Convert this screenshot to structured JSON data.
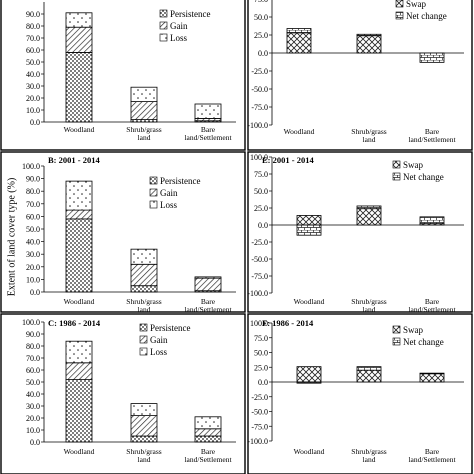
{
  "figure": {
    "ylabel": "Extent of land cover type (%)",
    "colors": {
      "frame": "#000000",
      "bar_fill": "#ffffff",
      "pattern_ink": "#222222"
    },
    "patterns": {
      "Persistence": "dots",
      "Gain": "hatch",
      "Loss": "sparse-dots",
      "Swap": "crosshatch",
      "Net change": "bricks"
    }
  },
  "chart_data": [
    {
      "id": "A",
      "type": "bar",
      "stacked": true,
      "title": "",
      "categories": [
        "Woodland",
        "Shrub/grass land",
        "Bare land/Settlement"
      ],
      "series": [
        {
          "name": "Persistence",
          "values": [
            58,
            2,
            1
          ]
        },
        {
          "name": "Gain",
          "values": [
            21,
            15,
            2
          ]
        },
        {
          "name": "Loss",
          "values": [
            12,
            12,
            12
          ]
        }
      ],
      "ylim": [
        0,
        100
      ],
      "ytick_labels": [
        "0.0",
        "10.0",
        "20.0",
        "30.0",
        "40.0",
        "50.0",
        "60.0",
        "70.0",
        "80.0",
        "90.0"
      ],
      "yticks_visible": 10,
      "legend": "top-right"
    },
    {
      "id": "B",
      "type": "bar",
      "stacked": true,
      "title": "B: 2001 - 2014",
      "categories": [
        "Woodland",
        "Shrub/grass land",
        "Bare land/Settlement"
      ],
      "series": [
        {
          "name": "Persistence",
          "values": [
            58,
            5,
            1
          ]
        },
        {
          "name": "Gain",
          "values": [
            7,
            17,
            10
          ]
        },
        {
          "name": "Loss",
          "values": [
            23,
            12,
            1
          ]
        }
      ],
      "ylim": [
        0,
        100
      ],
      "ytick_labels": [
        "0.0",
        "10.0",
        "20.0",
        "30.0",
        "40.0",
        "50.0",
        "60.0",
        "70.0",
        "80.0",
        "90.0",
        "100.0"
      ],
      "legend": "top-right"
    },
    {
      "id": "C",
      "type": "bar",
      "stacked": true,
      "title": "C: 1986 - 2014",
      "categories": [
        "Woodland",
        "Shrub/grass land",
        "Bare land/Settlement"
      ],
      "series": [
        {
          "name": "Persistence",
          "values": [
            52,
            5,
            5
          ]
        },
        {
          "name": "Gain",
          "values": [
            14,
            17,
            6
          ]
        },
        {
          "name": "Loss",
          "values": [
            18,
            10,
            10
          ]
        }
      ],
      "ylim": [
        0,
        100
      ],
      "ytick_labels": [
        "0.0",
        "10.0",
        "20.0",
        "30.0",
        "40.0",
        "50.0",
        "60.0",
        "70.0",
        "80.0",
        "90.0",
        "100.0"
      ],
      "legend": "top-right"
    },
    {
      "id": "D",
      "type": "bar",
      "stacked": true,
      "title": "",
      "categories": [
        "Woodland",
        "Shrub/grass land",
        "Bare land/Settlement"
      ],
      "series": [
        {
          "name": "Swap",
          "values": [
            28,
            24,
            0
          ]
        },
        {
          "name": "Net change",
          "values": [
            6,
            2,
            -13
          ]
        }
      ],
      "ylim": [
        -100,
        100
      ],
      "ytick_labels": [
        "-100.0",
        "-75.0",
        "-50.0",
        "-25.0",
        "0.0",
        "25.0",
        "50.0",
        "75.0"
      ],
      "legend": "top-right"
    },
    {
      "id": "E",
      "type": "bar",
      "stacked": true,
      "title": "E: 2001 - 2014",
      "categories": [
        "Woodland",
        "Shrub/grass land",
        "Bare land/Settlement"
      ],
      "series": [
        {
          "name": "Swap",
          "values": [
            14,
            24,
            2
          ]
        },
        {
          "name": "Net change",
          "values": [
            -15,
            4,
            10
          ]
        }
      ],
      "ylim": [
        -100,
        100
      ],
      "ytick_labels": [
        "-100.0",
        "-75.0",
        "-50.0",
        "-25.0",
        "0.0",
        "25.0",
        "50.0",
        "75.0",
        "100.0"
      ],
      "legend": "top-right"
    },
    {
      "id": "F",
      "type": "bar",
      "stacked": true,
      "title": "F: 1986 - 2014",
      "categories": [
        "Woodland",
        "Shrub/grass land",
        "Bare land/Settlement"
      ],
      "series": [
        {
          "name": "Swap",
          "values": [
            26,
            20,
            14
          ]
        },
        {
          "name": "Net change",
          "values": [
            -2,
            6,
            1
          ]
        }
      ],
      "ylim": [
        -100,
        100
      ],
      "ytick_labels": [
        "-100.0",
        "-75.0",
        "-50.0",
        "-25.0",
        "0.0",
        "25.0",
        "50.0",
        "75.0",
        "100.0"
      ],
      "legend": "top-right"
    }
  ]
}
